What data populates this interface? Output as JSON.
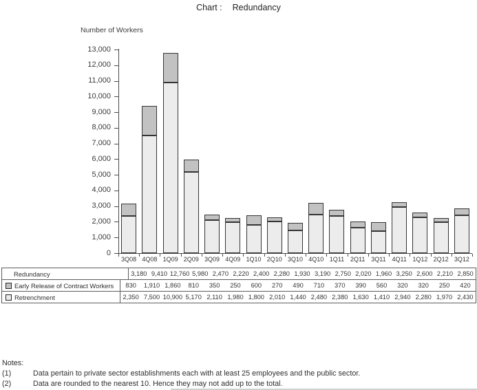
{
  "page": {
    "title_prefix": "Chart :",
    "title": "Redundancy"
  },
  "chart_data": {
    "type": "bar",
    "stacked": true,
    "title": "Chart : Redundancy",
    "xlabel": "",
    "ylabel": "Number of Workers",
    "ylim": [
      0,
      13000
    ],
    "ytick_step": 1000,
    "grid": false,
    "legend_position": "table-below-chart",
    "categories": [
      "3Q08",
      "4Q08",
      "1Q09",
      "2Q09",
      "3Q09",
      "4Q09",
      "1Q10",
      "2Q10",
      "3Q10",
      "4Q10",
      "1Q11",
      "2Q11",
      "3Q11",
      "4Q11",
      "1Q12",
      "2Q12",
      "3Q12"
    ],
    "series": [
      {
        "name": "Early Release of Contract Workers",
        "stack_position": "top",
        "values": [
          830,
          1910,
          1860,
          810,
          350,
          250,
          600,
          270,
          490,
          710,
          370,
          390,
          560,
          320,
          320,
          250,
          420
        ],
        "color": "#c2c2c2"
      },
      {
        "name": "Retrenchment",
        "stack_position": "bottom",
        "values": [
          2350,
          7500,
          10900,
          5170,
          2110,
          1980,
          1800,
          2010,
          1440,
          2480,
          2380,
          1630,
          1410,
          2940,
          2280,
          1970,
          2430
        ],
        "color": "#ececec"
      }
    ],
    "total_row": {
      "name": "Redundancy",
      "values": [
        3180,
        9410,
        12760,
        5980,
        2470,
        2220,
        2400,
        2280,
        1930,
        3190,
        2750,
        2020,
        1960,
        3250,
        2600,
        2210,
        2850
      ]
    }
  },
  "notes": {
    "heading": "Notes:",
    "items": [
      {
        "num": "(1)",
        "text": "Data pertain to private sector establishments each with at least 25 employees and the public sector."
      },
      {
        "num": "(2)",
        "text": "Data are rounded to the nearest 10.  Hence they may not add up to the total."
      }
    ]
  },
  "colors": {
    "early_release_fill": "#c2c2c2",
    "retrenchment_fill": "#ececec",
    "bar_border": "#343434",
    "axis": "#4a4a4a",
    "table_border": "#5a5a5a",
    "text": "#2e2e2e"
  }
}
